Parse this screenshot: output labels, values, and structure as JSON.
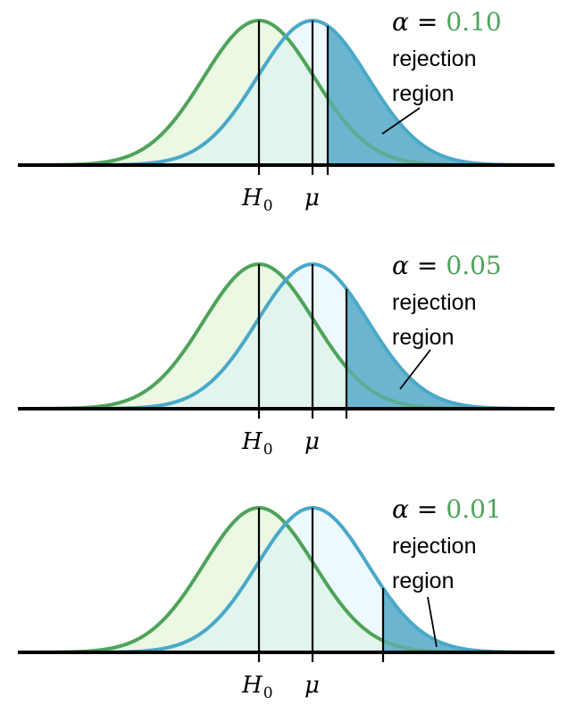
{
  "colors": {
    "null_curve": "#4ea35a",
    "null_fill": "#eaf8e4",
    "alt_curve": "#4aa8c8",
    "alt_fill": "#eef9fd",
    "overlap_fill": "#e2f5ec",
    "rejection_fill": "#6cb5cf",
    "alpha_value": "#4ea35a",
    "axis": "#000000"
  },
  "panels": [
    {
      "alpha_symbol": "α",
      "equals": "=",
      "alpha_value": "0.10",
      "label_line1": "rejection",
      "label_line2": "region",
      "h0_label": "H",
      "h0_subscript": "0",
      "mu_label": "μ"
    },
    {
      "alpha_symbol": "α",
      "equals": "=",
      "alpha_value": "0.05",
      "label_line1": "rejection",
      "label_line2": "region",
      "h0_label": "H",
      "h0_subscript": "0",
      "mu_label": "μ"
    },
    {
      "alpha_symbol": "α",
      "equals": "=",
      "alpha_value": "0.01",
      "label_line1": "rejection",
      "label_line2": "region",
      "h0_label": "H",
      "h0_subscript": "0",
      "mu_label": "μ"
    }
  ]
}
